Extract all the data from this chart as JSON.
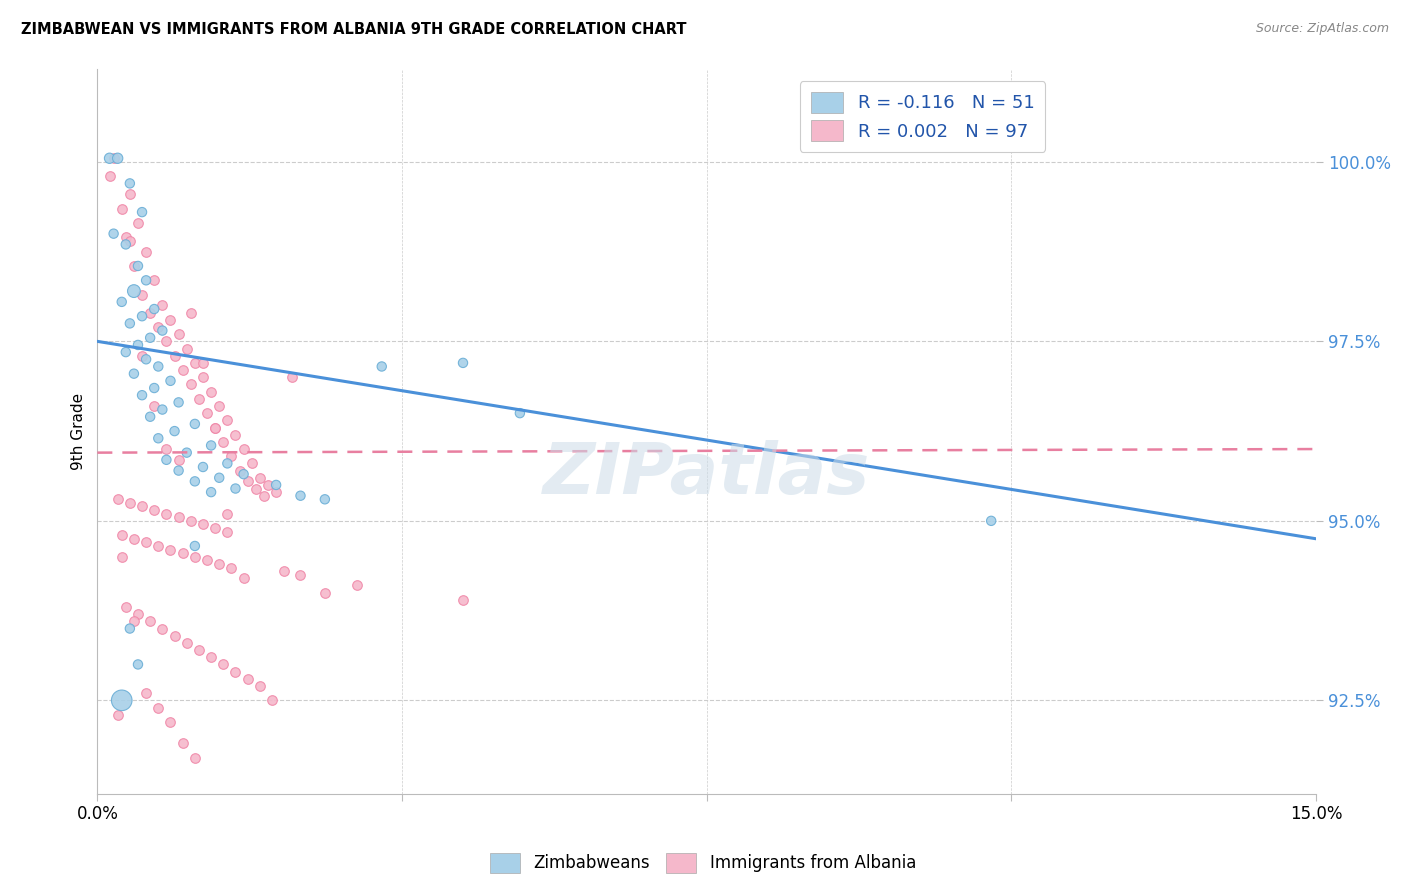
{
  "title": "ZIMBABWEAN VS IMMIGRANTS FROM ALBANIA 9TH GRADE CORRELATION CHART",
  "source": "Source: ZipAtlas.com",
  "ylabel": "9th Grade",
  "xlim": [
    0.0,
    15.0
  ],
  "ylim": [
    91.2,
    101.3
  ],
  "yticks": [
    92.5,
    95.0,
    97.5,
    100.0
  ],
  "ytick_labels": [
    "92.5%",
    "95.0%",
    "97.5%",
    "100.0%"
  ],
  "xtick_positions": [
    0.0,
    3.75,
    7.5,
    11.25,
    15.0
  ],
  "xtick_labels": [
    "0.0%",
    "",
    "",
    "",
    "15.0%"
  ],
  "legend_blue_label": "R = -0.116   N = 51",
  "legend_pink_label": "R = 0.002   N = 97",
  "legend_label1": "Zimbabweans",
  "legend_label2": "Immigrants from Albania",
  "blue_color": "#a8d0e8",
  "pink_color": "#f5b8cb",
  "blue_edge_color": "#6aaed6",
  "pink_edge_color": "#f087a8",
  "blue_line_color": "#4a90d9",
  "pink_line_color": "#e87fa0",
  "watermark": "ZIPatlas",
  "blue_line_x": [
    0.0,
    15.0
  ],
  "blue_line_y": [
    97.5,
    94.75
  ],
  "pink_line_x": [
    0.0,
    15.0
  ],
  "pink_line_y": [
    95.95,
    96.0
  ],
  "blue_scatter_x": [
    0.15,
    0.25,
    0.4,
    0.55,
    0.2,
    0.35,
    0.5,
    0.6,
    0.45,
    0.3,
    0.7,
    0.55,
    0.4,
    0.8,
    0.65,
    0.5,
    0.35,
    0.6,
    0.75,
    0.45,
    0.9,
    0.7,
    0.55,
    1.0,
    0.8,
    0.65,
    1.2,
    0.95,
    0.75,
    1.4,
    1.1,
    0.85,
    1.6,
    1.3,
    1.0,
    1.8,
    1.5,
    1.2,
    2.2,
    1.7,
    1.4,
    2.5,
    2.8,
    3.5,
    4.5,
    1.2,
    0.4,
    0.3,
    0.5,
    11.0,
    5.2
  ],
  "blue_scatter_y": [
    100.05,
    100.05,
    99.7,
    99.3,
    99.0,
    98.85,
    98.55,
    98.35,
    98.2,
    98.05,
    97.95,
    97.85,
    97.75,
    97.65,
    97.55,
    97.45,
    97.35,
    97.25,
    97.15,
    97.05,
    96.95,
    96.85,
    96.75,
    96.65,
    96.55,
    96.45,
    96.35,
    96.25,
    96.15,
    96.05,
    95.95,
    95.85,
    95.8,
    95.75,
    95.7,
    95.65,
    95.6,
    95.55,
    95.5,
    95.45,
    95.4,
    95.35,
    95.3,
    97.15,
    97.2,
    94.65,
    93.5,
    92.5,
    93.0,
    95.0,
    96.5
  ],
  "blue_scatter_sizes": [
    55,
    55,
    45,
    45,
    45,
    45,
    45,
    45,
    85,
    45,
    45,
    45,
    45,
    45,
    45,
    45,
    45,
    45,
    45,
    45,
    45,
    45,
    45,
    45,
    45,
    45,
    45,
    45,
    45,
    45,
    45,
    45,
    45,
    45,
    45,
    45,
    45,
    45,
    45,
    45,
    45,
    45,
    45,
    45,
    45,
    45,
    45,
    220,
    45,
    45,
    45
  ],
  "pink_scatter_x": [
    0.2,
    0.15,
    0.4,
    0.3,
    0.5,
    0.35,
    0.6,
    0.45,
    0.7,
    0.55,
    0.8,
    0.65,
    0.9,
    0.75,
    1.0,
    0.85,
    1.1,
    0.95,
    1.2,
    1.05,
    1.3,
    1.15,
    1.4,
    1.25,
    1.5,
    1.35,
    1.6,
    1.45,
    1.7,
    1.55,
    1.8,
    1.65,
    1.9,
    1.75,
    2.0,
    1.85,
    2.1,
    1.95,
    2.2,
    2.05,
    0.25,
    0.4,
    0.55,
    0.7,
    0.85,
    1.0,
    1.15,
    1.3,
    1.45,
    1.6,
    0.3,
    0.45,
    0.6,
    0.75,
    0.9,
    1.05,
    1.2,
    1.35,
    1.5,
    1.65,
    2.3,
    2.5,
    1.8,
    3.2,
    2.8,
    4.5,
    0.35,
    0.5,
    0.65,
    0.8,
    0.95,
    1.1,
    1.25,
    1.4,
    1.55,
    1.7,
    1.85,
    2.0,
    2.15,
    0.25,
    0.4,
    0.55,
    0.7,
    0.85,
    1.0,
    1.15,
    1.3,
    1.45,
    1.6,
    2.4,
    0.3,
    0.45,
    0.6,
    0.75,
    0.9,
    1.05,
    1.2
  ],
  "pink_scatter_y": [
    100.05,
    99.8,
    99.55,
    99.35,
    99.15,
    98.95,
    98.75,
    98.55,
    98.35,
    98.15,
    98.0,
    97.9,
    97.8,
    97.7,
    97.6,
    97.5,
    97.4,
    97.3,
    97.2,
    97.1,
    97.0,
    96.9,
    96.8,
    96.7,
    96.6,
    96.5,
    96.4,
    96.3,
    96.2,
    96.1,
    96.0,
    95.9,
    95.8,
    95.7,
    95.6,
    95.55,
    95.5,
    95.45,
    95.4,
    95.35,
    95.3,
    95.25,
    95.2,
    95.15,
    95.1,
    95.05,
    95.0,
    94.95,
    94.9,
    94.85,
    94.8,
    94.75,
    94.7,
    94.65,
    94.6,
    94.55,
    94.5,
    94.45,
    94.4,
    94.35,
    94.3,
    94.25,
    94.2,
    94.1,
    94.0,
    93.9,
    93.8,
    93.7,
    93.6,
    93.5,
    93.4,
    93.3,
    93.2,
    93.1,
    93.0,
    92.9,
    92.8,
    92.7,
    92.5,
    92.3,
    98.9,
    97.3,
    96.6,
    96.0,
    95.85,
    97.9,
    97.2,
    96.3,
    95.1,
    97.0,
    94.5,
    93.6,
    92.6,
    92.4,
    92.2,
    91.9,
    91.7
  ]
}
